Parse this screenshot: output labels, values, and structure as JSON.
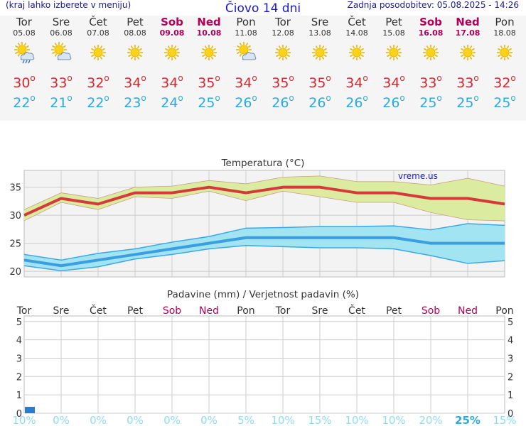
{
  "header": {
    "left": "(kraj lahko izberete v meniju)",
    "title": "Čiovo 14 dni",
    "right": "Zadnja posodobitev: 05.08.2025 - 14:26"
  },
  "days": [
    {
      "name": "Tor",
      "date": "05.08",
      "icon": "sun-cloud-rain-icon",
      "tmax": "30",
      "tmin": "22",
      "weekend": false
    },
    {
      "name": "Sre",
      "date": "06.08",
      "icon": "sun-cloud-icon",
      "tmax": "33",
      "tmin": "21",
      "weekend": false
    },
    {
      "name": "Čet",
      "date": "07.08",
      "icon": "sun-icon",
      "tmax": "32",
      "tmin": "22",
      "weekend": false
    },
    {
      "name": "Pet",
      "date": "08.08",
      "icon": "sun-icon",
      "tmax": "34",
      "tmin": "23",
      "weekend": false
    },
    {
      "name": "Sob",
      "date": "09.08",
      "icon": "sun-icon",
      "tmax": "34",
      "tmin": "24",
      "weekend": true
    },
    {
      "name": "Ned",
      "date": "10.08",
      "icon": "sun-icon",
      "tmax": "35",
      "tmin": "25",
      "weekend": true
    },
    {
      "name": "Pon",
      "date": "11.08",
      "icon": "sun-cloud-icon",
      "tmax": "34",
      "tmin": "26",
      "weekend": false
    },
    {
      "name": "Tor",
      "date": "12.08",
      "icon": "sun-icon",
      "tmax": "35",
      "tmin": "26",
      "weekend": false
    },
    {
      "name": "Sre",
      "date": "13.08",
      "icon": "sun-icon",
      "tmax": "35",
      "tmin": "26",
      "weekend": false
    },
    {
      "name": "Čet",
      "date": "14.08",
      "icon": "sun-icon",
      "tmax": "34",
      "tmin": "26",
      "weekend": false
    },
    {
      "name": "Pet",
      "date": "15.08",
      "icon": "sun-icon",
      "tmax": "34",
      "tmin": "26",
      "weekend": false
    },
    {
      "name": "Sob",
      "date": "16.08",
      "icon": "sun-icon",
      "tmax": "33",
      "tmin": "25",
      "weekend": true
    },
    {
      "name": "Ned",
      "date": "17.08",
      "icon": "sun-icon",
      "tmax": "33",
      "tmin": "25",
      "weekend": true
    },
    {
      "name": "Pon",
      "date": "18.08",
      "icon": "sun-icon",
      "tmax": "32",
      "tmin": "25",
      "weekend": false
    }
  ],
  "degree": "o",
  "chart_data": [
    {
      "type": "line",
      "title": "Temperatura (°C)",
      "watermark": "vreme.us",
      "xlabel": "",
      "ylabel": "",
      "ylim": [
        19,
        38
      ],
      "yticks": [
        20,
        25,
        30,
        35
      ],
      "x_index": [
        0,
        1,
        2,
        3,
        4,
        5,
        6,
        7,
        8,
        9,
        10,
        11,
        12,
        13
      ],
      "series": [
        {
          "name": "max",
          "color": "#d43a3a",
          "values": [
            30,
            33,
            32,
            34,
            34,
            35,
            34,
            35,
            35,
            34,
            34,
            33,
            33,
            32
          ]
        },
        {
          "name": "max_upper",
          "color": "#dbeba0",
          "values": [
            31,
            34,
            33,
            35,
            35.2,
            36.2,
            35.6,
            36.8,
            37,
            36,
            36,
            35.4,
            36.6,
            35.2
          ]
        },
        {
          "name": "max_lower",
          "color": "#dbeba0",
          "values": [
            29,
            32.3,
            31,
            33.3,
            33,
            34.3,
            32.6,
            34.3,
            33.3,
            32.3,
            32.3,
            30.5,
            29.2,
            29
          ]
        },
        {
          "name": "min",
          "color": "#3a9ee0",
          "values": [
            22,
            21,
            22,
            23,
            24,
            25,
            26,
            26,
            26,
            26,
            26,
            25,
            25,
            25
          ]
        },
        {
          "name": "min_upper",
          "color": "#a2e4f2",
          "values": [
            23,
            22,
            23.2,
            24,
            25.2,
            26.2,
            27.7,
            27.8,
            28,
            28,
            28.1,
            27.4,
            28.5,
            28.2
          ]
        },
        {
          "name": "min_lower",
          "color": "#a2e4f2",
          "values": [
            21,
            20.1,
            20.8,
            22.2,
            23,
            24,
            24.6,
            24.4,
            24.2,
            24.2,
            24,
            22.8,
            21.4,
            21.9
          ]
        }
      ]
    },
    {
      "type": "bar",
      "title": "Padavine (mm) / Verjetnost padavin (%)",
      "ylim": [
        0,
        5.3
      ],
      "yticks": [
        0,
        1,
        2,
        3,
        4,
        5
      ],
      "categories": [
        "Tor",
        "Sre",
        "Čet",
        "Pet",
        "Sob",
        "Ned",
        "Pon",
        "Tor",
        "Sre",
        "Čet",
        "Pet",
        "Sob",
        "Ned",
        "Pon"
      ],
      "weekend": [
        false,
        false,
        false,
        false,
        true,
        true,
        false,
        false,
        false,
        false,
        false,
        true,
        true,
        false
      ],
      "values": [
        0.12,
        0,
        0,
        0,
        0,
        0,
        0,
        0,
        0,
        0,
        0,
        0,
        0,
        0
      ],
      "probability": [
        "10%",
        "0%",
        "0%",
        "0%",
        "0%",
        "0%",
        "5%",
        "10%",
        "15%",
        "10%",
        "10%",
        "20%",
        "25%",
        "15%"
      ],
      "bar_color": "#2a7ad6"
    }
  ],
  "colors": {
    "weekend": "#b0005a",
    "grid": "#cccccc",
    "prob_low": "#8fdcef",
    "prob_high": "#2aaae0"
  }
}
